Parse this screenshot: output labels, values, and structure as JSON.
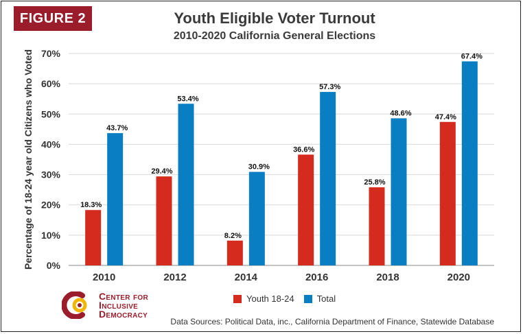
{
  "figure_label": "FIGURE 2",
  "logo": {
    "name": "center-for-inclusive-democracy-logo",
    "lines": [
      "Center for",
      "Inclusive",
      "Democracy"
    ]
  },
  "sources": "Data Sources: Political Data, inc., California Department of Finance, Statewide Database",
  "colors": {
    "youth": "#d52b1e",
    "total": "#0a7ec2",
    "figure_label": "#9b1c2a"
  },
  "chart_data": {
    "type": "bar",
    "title": "Youth Eligible Voter Turnout",
    "subtitle": "2010-2020 California General Elections",
    "ylabel": "Percentage of 18-24 year old Citizens who Voted",
    "xlabel": "",
    "categories": [
      "2010",
      "2012",
      "2014",
      "2016",
      "2018",
      "2020"
    ],
    "ylim": [
      0,
      70
    ],
    "yticks": [
      "0%",
      "10%",
      "20%",
      "30%",
      "40%",
      "50%",
      "60%",
      "70%"
    ],
    "grid": true,
    "legend_position": "bottom",
    "series": [
      {
        "name": "Youth 18-24",
        "values": [
          18.3,
          29.4,
          8.2,
          36.6,
          25.8,
          47.4
        ],
        "labels": [
          "18.3%",
          "29.4%",
          "8.2%",
          "36.6%",
          "25.8%",
          "47.4%"
        ]
      },
      {
        "name": "Total",
        "values": [
          43.7,
          53.4,
          30.9,
          57.3,
          48.6,
          67.4
        ],
        "labels": [
          "43.7%",
          "53.4%",
          "30.9%",
          "57.3%",
          "48.6%",
          "67.4%"
        ]
      }
    ]
  }
}
